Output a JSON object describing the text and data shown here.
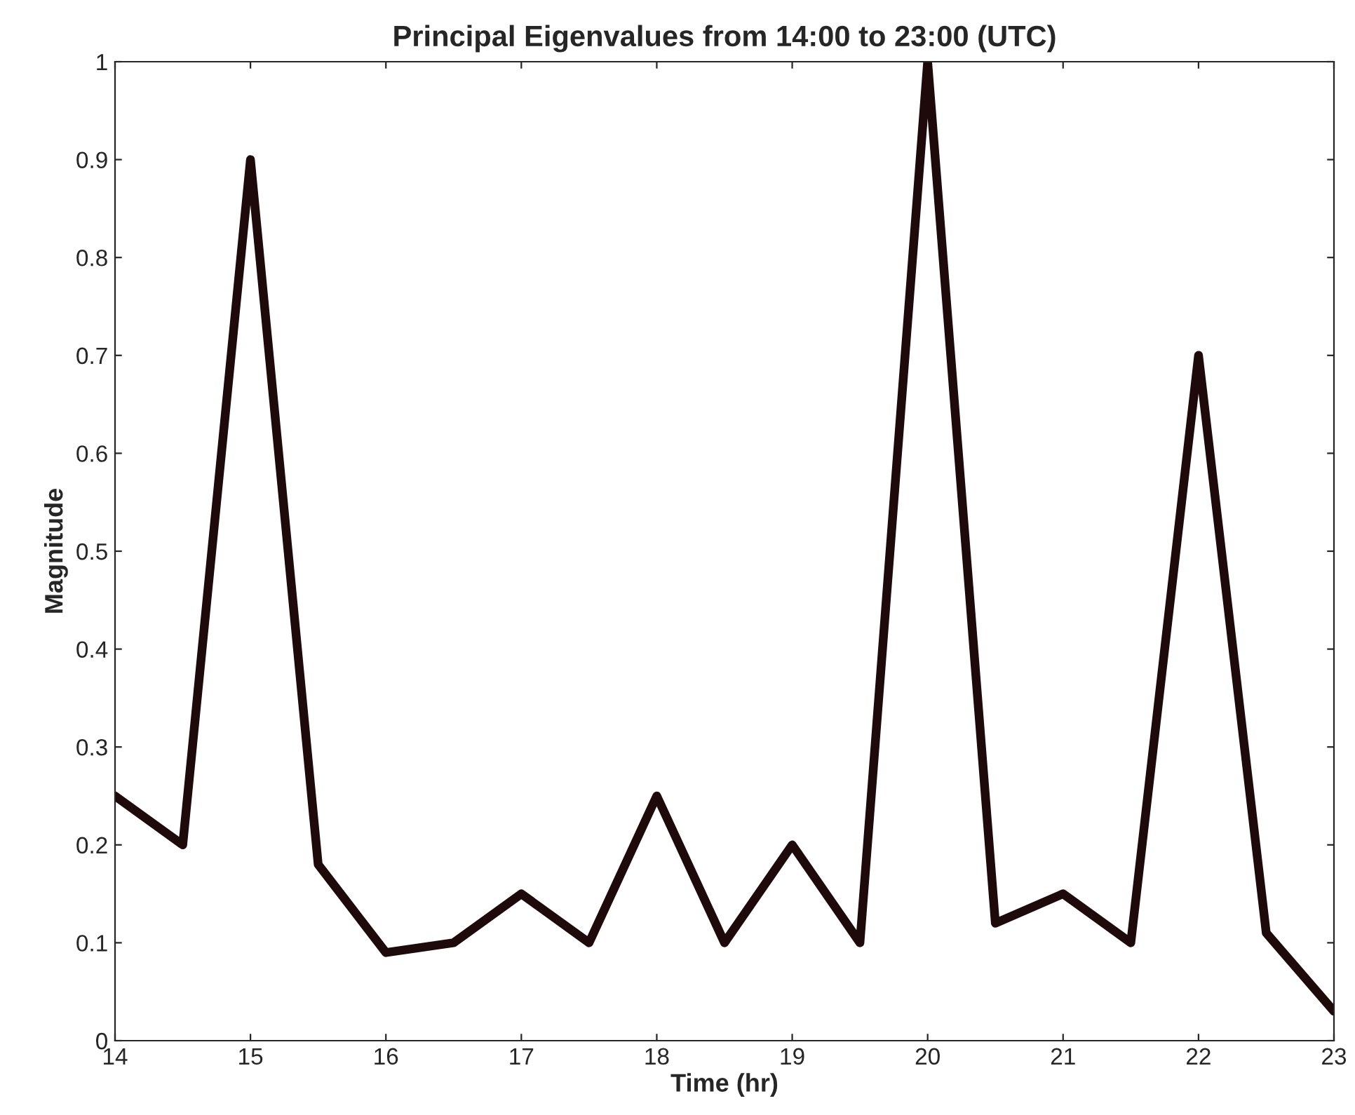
{
  "chart_data": {
    "type": "line",
    "title": "Principal Eigenvalues from 14:00 to 23:00 (UTC)",
    "xlabel": "Time (hr)",
    "ylabel": "Magnitude",
    "x": [
      14,
      14.5,
      15,
      15.5,
      16,
      16.5,
      17,
      17.5,
      18,
      18.5,
      19,
      19.5,
      20,
      20.5,
      21,
      21.5,
      22,
      22.5,
      23
    ],
    "series": [
      {
        "color": "#1e0a0a",
        "values": [
          0.25,
          0.2,
          0.9,
          0.18,
          0.09,
          0.1,
          0.15,
          0.1,
          0.25,
          0.1,
          0.2,
          0.1,
          1.0,
          0.12,
          0.15,
          0.1,
          0.7,
          0.11,
          0.03
        ]
      }
    ],
    "xlim": [
      14,
      23
    ],
    "xticks": [
      14,
      15,
      16,
      17,
      18,
      19,
      20,
      21,
      22,
      23
    ],
    "ylim": [
      0,
      1
    ],
    "yticks": [
      0,
      0.1,
      0.2,
      0.3,
      0.4,
      0.5,
      0.6,
      0.7,
      0.8,
      0.9,
      1
    ],
    "grid": false,
    "line_style": "solid"
  }
}
